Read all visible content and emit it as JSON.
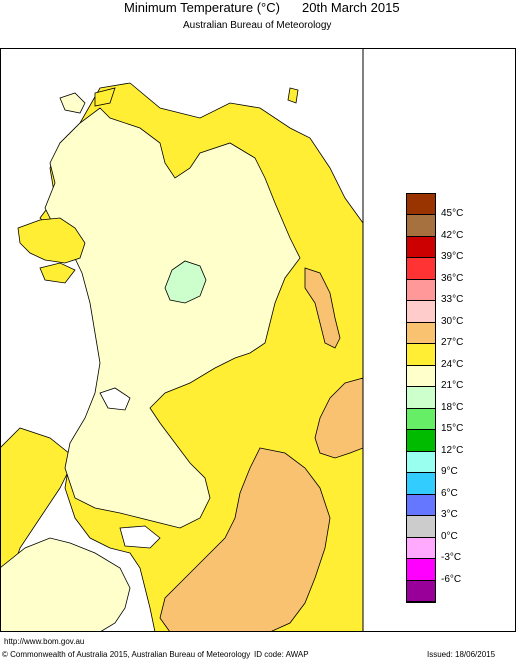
{
  "header": {
    "title": "Minimum Temperature (°C)",
    "date": "20th March 2015",
    "subtitle": "Australian Bureau of Meteorology"
  },
  "legend": {
    "items": [
      {
        "label": "45°C",
        "color": "#993300"
      },
      {
        "label": "42°C",
        "color": "#a6713f"
      },
      {
        "label": "39°C",
        "color": "#cc0000"
      },
      {
        "label": "36°C",
        "color": "#ff3333"
      },
      {
        "label": "33°C",
        "color": "#ff9999"
      },
      {
        "label": "30°C",
        "color": "#ffcccc"
      },
      {
        "label": "27°C",
        "color": "#f9c270"
      },
      {
        "label": "24°C",
        "color": "#ffee33"
      },
      {
        "label": "21°C",
        "color": "#ffffcc"
      },
      {
        "label": "18°C",
        "color": "#ccffcc"
      },
      {
        "label": "15°C",
        "color": "#66ee66"
      },
      {
        "label": "12°C",
        "color": "#00bb00"
      },
      {
        "label": "9°C",
        "color": "#99ffee"
      },
      {
        "label": "6°C",
        "color": "#33ccff"
      },
      {
        "label": "3°C",
        "color": "#6677ff"
      },
      {
        "label": "0°C",
        "color": "#cccccc"
      },
      {
        "label": "-3°C",
        "color": "#ffaaff"
      },
      {
        "label": "-6°C",
        "color": "#ff00ff"
      },
      {
        "label": "",
        "color": "#990099"
      }
    ]
  },
  "footer": {
    "url": "http://www.bom.gov.au",
    "copyright": "© Commonwealth of Australia 2015, Australian Bureau of Meteorology",
    "id_code": "ID code: AWAP",
    "issued": "Issued: 18/06/2015"
  }
}
